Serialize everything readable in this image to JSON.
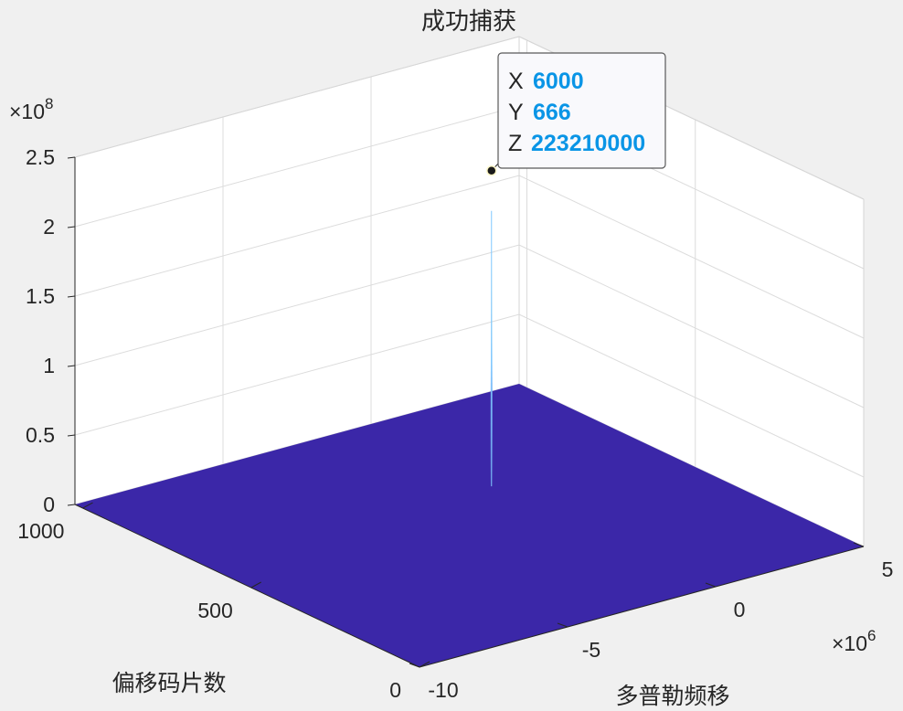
{
  "colors": {
    "surface": "#3b27a8",
    "spike": "#7fc8ff",
    "datatip_value": "#0a95e6"
  },
  "chart_data": {
    "type": "surface",
    "title": "成功捕获",
    "xlabel": "多普勒频移",
    "ylabel": "偏移码片数",
    "zlabel": "",
    "x_multiplier": "×10",
    "x_multiplier_exp": "6",
    "z_multiplier": "×10",
    "z_multiplier_exp": "8",
    "xlim": [
      -10000000,
      5000000
    ],
    "ylim": [
      0,
      1023
    ],
    "zlim": [
      0,
      250000000
    ],
    "x_ticks": [
      -10,
      -5,
      0,
      5
    ],
    "x_tick_labels": [
      "-10",
      "-5",
      "0",
      "5"
    ],
    "y_ticks": [
      0,
      500,
      1000
    ],
    "y_tick_labels": [
      "0",
      "500",
      "1000"
    ],
    "z_ticks": [
      0,
      0.5,
      1,
      1.5,
      2,
      2.5
    ],
    "z_tick_labels": [
      "0",
      "0.5",
      "1",
      "1.5",
      "2",
      "2.5"
    ],
    "floor_value": 0,
    "peak": {
      "x": 6000,
      "y": 666,
      "z": 223210000
    },
    "grid": true,
    "datatip": {
      "x_label": "X",
      "x_value": "6000",
      "y_label": "Y",
      "y_value": "666",
      "z_label": "Z",
      "z_value": "223210000"
    }
  }
}
